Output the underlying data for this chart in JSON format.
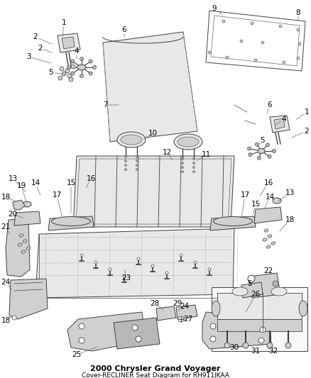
{
  "title": "2000 Chrysler Grand Voyager",
  "subtitle": "Cover-RECLINER Seat Diagram for RH911JKAA",
  "bg": "#ffffff",
  "lc": "#404040",
  "lc2": "#888888",
  "fw": 4.39,
  "fh": 5.33,
  "dpi": 100
}
